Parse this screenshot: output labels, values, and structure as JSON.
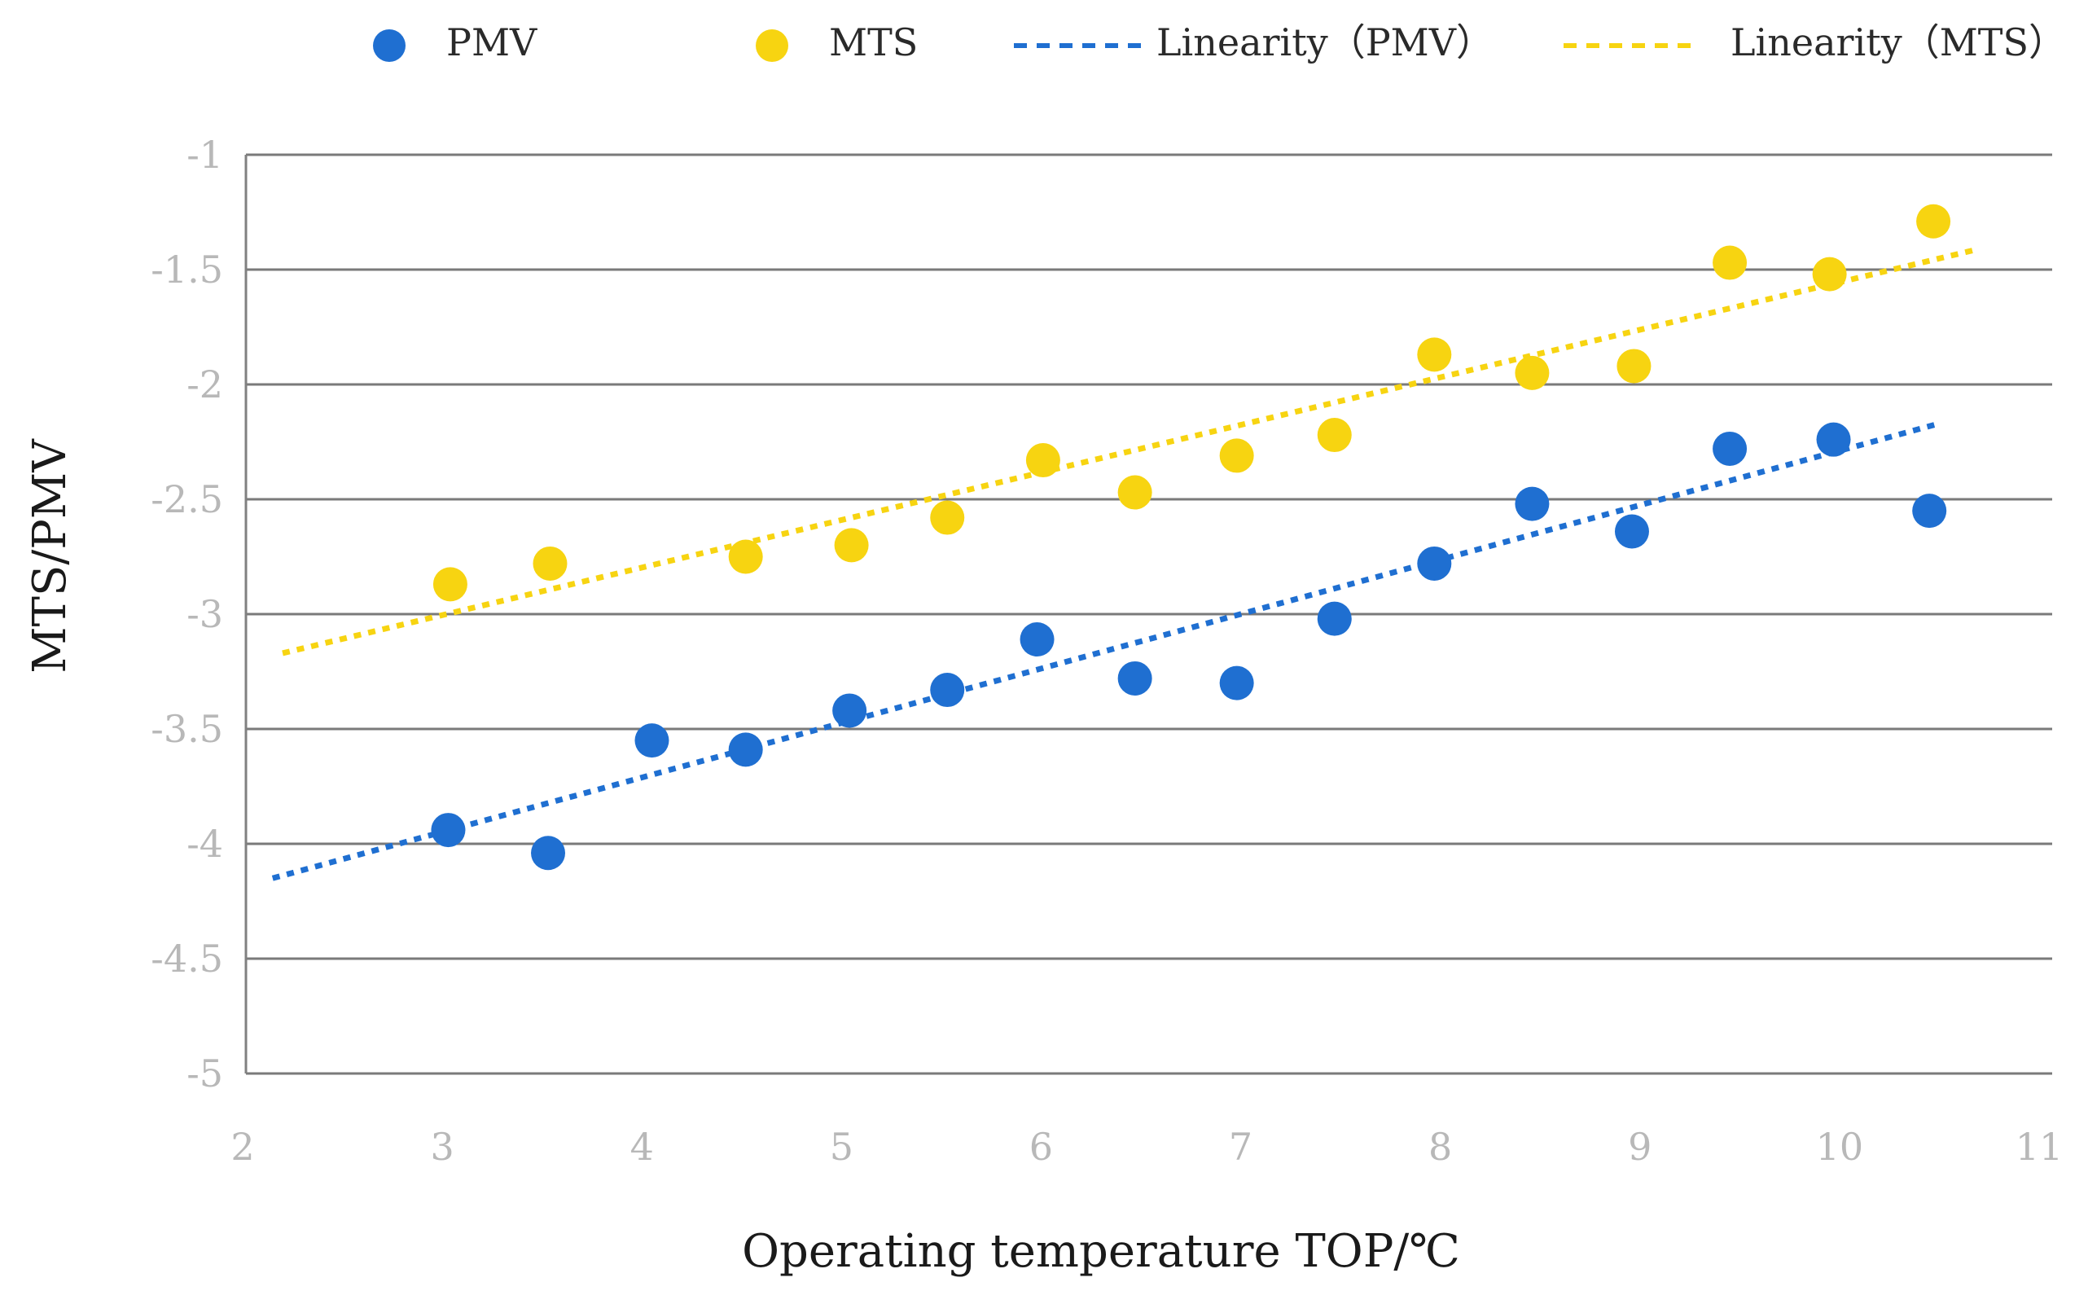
{
  "chart_data": {
    "type": "scatter",
    "title": "",
    "xlabel": "Operating temperature TOP/℃",
    "ylabel": "MTS/PMV",
    "xlim": [
      2,
      11
    ],
    "ylim": [
      -5,
      -1
    ],
    "xticks": [
      "2",
      "3",
      "4",
      "5",
      "6",
      "7",
      "8",
      "9",
      "10",
      "11"
    ],
    "yticks": [
      "-1",
      "-1.5",
      "-2",
      "-2.5",
      "-3",
      "-3.5",
      "-4",
      "-4.5",
      "-5"
    ],
    "grid": "horizontal",
    "legend_position": "top",
    "legend": [
      "PMV",
      "MTS",
      "Linearity（PMV）",
      "Linearity（MTS）"
    ],
    "series": [
      {
        "name": "PMV",
        "color": "#1f6fd1",
        "x": [
          3.03,
          3.53,
          4.05,
          4.52,
          5.04,
          5.53,
          5.98,
          6.47,
          6.98,
          7.47,
          7.97,
          8.46,
          8.96,
          9.45,
          9.97,
          10.45
        ],
        "y": [
          -3.94,
          -4.04,
          -3.55,
          -3.59,
          -3.42,
          -3.33,
          -3.11,
          -3.28,
          -3.3,
          -3.02,
          -2.78,
          -2.52,
          -2.64,
          -2.28,
          -2.24,
          -2.55
        ]
      },
      {
        "name": "MTS",
        "color": "#f7d411",
        "x": [
          3.04,
          3.54,
          4.52,
          5.05,
          5.53,
          6.01,
          6.47,
          6.98,
          7.47,
          7.97,
          8.46,
          8.97,
          9.45,
          9.95,
          10.47
        ],
        "y": [
          -2.87,
          -2.78,
          -2.75,
          -2.7,
          -2.58,
          -2.33,
          -2.47,
          -2.31,
          -2.22,
          -1.87,
          -1.95,
          -1.92,
          -1.47,
          -1.52,
          -1.29
        ]
      }
    ],
    "trendlines": [
      {
        "name": "Linearity（PMV）",
        "color": "#1f6fd1",
        "x": [
          2.15,
          10.5
        ],
        "y": [
          -4.15,
          -2.17
        ]
      },
      {
        "name": "Linearity（MTS）",
        "color": "#f7d411",
        "x": [
          2.2,
          10.7
        ],
        "y": [
          -3.17,
          -1.41
        ]
      }
    ]
  }
}
